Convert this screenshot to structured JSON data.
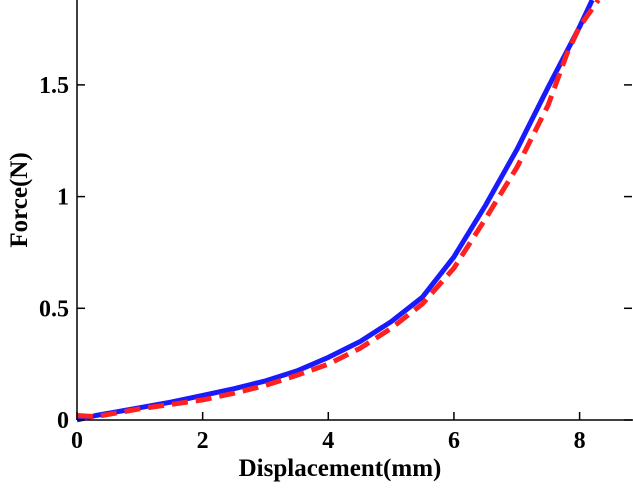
{
  "chart_data": {
    "type": "line",
    "xlabel": "Displacement(mm)",
    "ylabel": "Force(N)",
    "xlim": [
      0,
      8.85
    ],
    "ylim": [
      0,
      1.88
    ],
    "xticks": [
      0,
      2,
      4,
      6,
      8
    ],
    "xtick_labels": [
      "0",
      "2",
      "4",
      "6",
      "8"
    ],
    "yticks": [
      0,
      0.5,
      1,
      1.5
    ],
    "ytick_labels": [
      "0",
      "0.5",
      "1",
      "1.5"
    ],
    "grid": false,
    "series": [
      {
        "style": "solid",
        "color": "#1a1aff",
        "x": [
          0,
          0.3,
          0.6,
          1.0,
          1.5,
          2.0,
          2.5,
          3.0,
          3.5,
          4.0,
          4.5,
          5.0,
          5.5,
          6.0,
          6.5,
          7.0,
          7.5,
          8.0,
          8.2
        ],
        "y": [
          0.0,
          0.02,
          0.035,
          0.055,
          0.08,
          0.11,
          0.14,
          0.175,
          0.22,
          0.28,
          0.35,
          0.44,
          0.55,
          0.73,
          0.96,
          1.21,
          1.49,
          1.76,
          1.88
        ]
      },
      {
        "style": "dashed",
        "color": "#ff2020",
        "x": [
          0,
          0.3,
          0.6,
          1.0,
          1.5,
          2.0,
          2.5,
          3.0,
          3.5,
          4.0,
          4.5,
          5.0,
          5.5,
          6.0,
          6.5,
          7.0,
          7.5,
          7.8,
          8.0,
          8.3
        ],
        "y": [
          0.02,
          0.015,
          0.03,
          0.05,
          0.07,
          0.09,
          0.12,
          0.155,
          0.2,
          0.25,
          0.32,
          0.41,
          0.52,
          0.68,
          0.9,
          1.13,
          1.41,
          1.64,
          1.76,
          1.88
        ]
      }
    ],
    "colors": {
      "axis": "#000000",
      "background": "#ffffff"
    }
  }
}
